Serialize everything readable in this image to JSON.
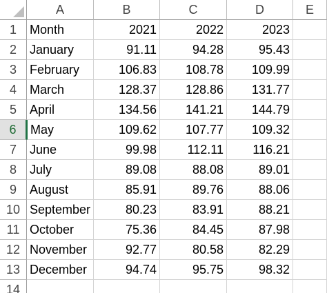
{
  "columns": [
    "A",
    "B",
    "C",
    "D",
    "E"
  ],
  "row_numbers": [
    "1",
    "2",
    "3",
    "4",
    "5",
    "6",
    "7",
    "8",
    "9",
    "10",
    "11",
    "12",
    "13",
    "14"
  ],
  "active_row": "6",
  "rows": [
    [
      "Month",
      "2021",
      "2022",
      "2023"
    ],
    [
      "January",
      "91.11",
      "94.28",
      "95.43"
    ],
    [
      "February",
      "106.83",
      "108.78",
      "109.99"
    ],
    [
      "March",
      "128.37",
      "128.86",
      "131.77"
    ],
    [
      "April",
      "134.56",
      "141.21",
      "144.79"
    ],
    [
      "May",
      "109.62",
      "107.77",
      "109.32"
    ],
    [
      "June",
      "99.98",
      "112.11",
      "116.21"
    ],
    [
      "July",
      "89.08",
      "88.08",
      "89.01"
    ],
    [
      "August",
      "85.91",
      "89.76",
      "88.06"
    ],
    [
      "September",
      "80.23",
      "83.91",
      "88.21"
    ],
    [
      "October",
      "75.36",
      "84.45",
      "87.98"
    ],
    [
      "November",
      "92.77",
      "80.58",
      "82.29"
    ],
    [
      "December",
      "94.74",
      "95.75",
      "98.32"
    ]
  ]
}
